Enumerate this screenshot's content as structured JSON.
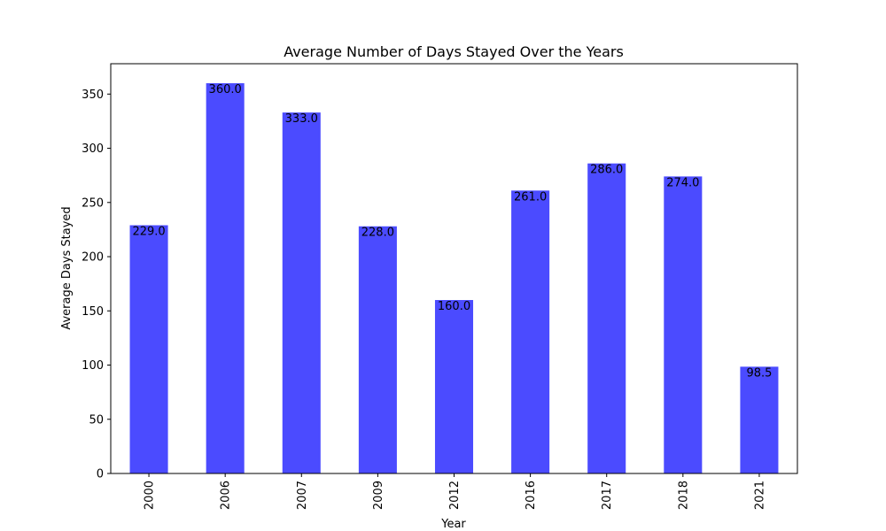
{
  "chart_data": {
    "type": "bar",
    "title": "Average Number of Days Stayed Over the Years",
    "xlabel": "Year",
    "ylabel": "Average Days Stayed",
    "categories": [
      "2000",
      "2006",
      "2007",
      "2009",
      "2012",
      "2016",
      "2017",
      "2018",
      "2021"
    ],
    "values": [
      229.0,
      360.0,
      333.0,
      228.0,
      160.0,
      261.0,
      286.0,
      274.0,
      98.5
    ],
    "data_labels": [
      "229.0",
      "360.0",
      "333.0",
      "228.0",
      "160.0",
      "261.0",
      "286.0",
      "274.0",
      "98.5"
    ],
    "ylim": [
      0,
      378
    ],
    "yticks": [
      0,
      50,
      100,
      150,
      200,
      250,
      300,
      350
    ],
    "bar_color": "#4b4bff",
    "grid": false,
    "legend": "none"
  }
}
